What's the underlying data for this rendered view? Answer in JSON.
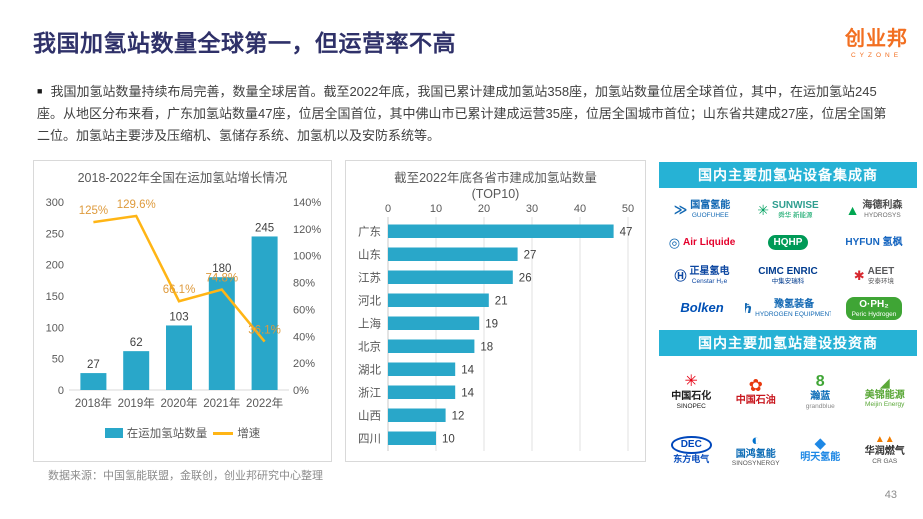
{
  "page": {
    "title": "我国加氢站数量全球第一，但运营率不高",
    "source_note": "数据来源：中国氢能联盟，金联创，创业邦研究中心整理",
    "page_number": "43"
  },
  "brand": {
    "name": "创业邦",
    "sub": "CYZONE",
    "color": "#F26F21"
  },
  "intro": {
    "bullet": "■",
    "text": "我国加氢站数量持续布局完善，数量全球居首。截至2022年底，我国已累计建成加氢站358座，加氢站数量位居全球首位，其中，在运加氢站245座。从地区分布来看，广东加氢站数量47座，位居全国首位，其中佛山市已累计建成运营35座，位居全国城市首位；山东省共建成27座，位居全国第二位。加氢站主要涉及压缩机、氢储存系统、加氢机以及安防系统等。"
  },
  "colors": {
    "teal_bar": "#29A7C9",
    "line_orange": "#FFB515",
    "label_orange": "#DE9A3C",
    "header_cyan": "#26B2D5",
    "title_navy": "#2F3169",
    "axis_gray": "#595959",
    "grid_gray": "#E2E2E2"
  },
  "chart_data": [
    {
      "type": "bar",
      "title": "2018-2022年全国在运加氢站增长情况",
      "categories": [
        "2018年",
        "2019年",
        "2020年",
        "2021年",
        "2022年"
      ],
      "series": [
        {
          "name": "在运加氢站数量",
          "type": "bar",
          "axis": "left",
          "color": "#29A7C9",
          "values": [
            27,
            62,
            103,
            180,
            245
          ]
        },
        {
          "name": "增速",
          "type": "line",
          "axis": "right",
          "color": "#FFB515",
          "values": [
            125,
            129.6,
            66.1,
            74.8,
            36.1
          ],
          "labels": [
            "125%",
            "129.6%",
            "66.1%",
            "74.8%",
            "36.1%"
          ]
        }
      ],
      "left_axis": {
        "min": 0,
        "max": 300,
        "step": 50,
        "ticks": [
          "0",
          "50",
          "100",
          "150",
          "200",
          "250",
          "300"
        ]
      },
      "right_axis": {
        "min": 0,
        "max": 140,
        "step": 20,
        "ticks": [
          "0%",
          "20%",
          "40%",
          "60%",
          "80%",
          "100%",
          "120%",
          "140%"
        ]
      },
      "legend_position": "bottom",
      "grid": false
    },
    {
      "type": "bar",
      "orientation": "horizontal",
      "title": "截至2022年底各省市建成加氢站数量",
      "subtitle": "(TOP10)",
      "categories": [
        "广东",
        "山东",
        "江苏",
        "河北",
        "上海",
        "北京",
        "湖北",
        "浙江",
        "山西",
        "四川"
      ],
      "values": [
        47,
        27,
        26,
        21,
        19,
        18,
        14,
        14,
        12,
        10
      ],
      "xlim": [
        0,
        50
      ],
      "x_ticks": [
        "0",
        "10",
        "20",
        "30",
        "40",
        "50"
      ],
      "color": "#29A7C9",
      "grid": true,
      "axis_position": "top"
    }
  ],
  "suppliers": {
    "header_integrators": "国内主要加氢站设备集成商",
    "header_investors": "国内主要加氢站建设投资商",
    "integrators": [
      {
        "icon": "guofuhee-icon",
        "glyph": "≫",
        "glyphColor": "#1268B3",
        "glyphSize": 13,
        "label": "国富氢能",
        "labelColor": "#1268B3",
        "sub": "GUOFUHEE",
        "subColor": "#1268B3"
      },
      {
        "icon": "sunwise-icon",
        "glyph": "✳",
        "glyphColor": "#00A160",
        "glyphSize": 14,
        "label": "SUNWISE",
        "labelColor": "#2E9E8F",
        "sub": "舜华 新能源",
        "subColor": "#00A160"
      },
      {
        "icon": "hydrosys-icon",
        "glyph": "▲",
        "glyphColor": "#00A651",
        "glyphSize": 14,
        "label": "海德利森",
        "labelColor": "#4D4D4D",
        "sub": "HYDROSYS",
        "subColor": "#6b6b6b"
      },
      {
        "icon": "air-liquide-icon",
        "glyph": "◎",
        "glyphColor": "#0A63AF",
        "glyphSize": 13,
        "label": "Air Liquide",
        "labelColor": "#E4002B"
      },
      {
        "icon": "hqhp-icon",
        "label": "HQHP",
        "labelColor": "#ffffff",
        "badge": "#009A57"
      },
      {
        "icon": "hyfun-icon",
        "label": "HYFUN 氢枫",
        "labelColor": "#1565C0"
      },
      {
        "icon": "censtar-icon",
        "glyph": "Ⓗ",
        "glyphColor": "#0D47A1",
        "glyphSize": 12,
        "label": "正星氢电",
        "labelColor": "#0D47A1",
        "sub": "Censtar H₂e",
        "subColor": "#0D47A1"
      },
      {
        "icon": "cimc-enric-icon",
        "label": "CIMC ENRIC",
        "labelColor": "#003B8E",
        "sub": "中集安瑞科",
        "subColor": "#003B8E"
      },
      {
        "icon": "aeet-icon",
        "glyph": "✱",
        "glyphColor": "#D7282F",
        "glyphSize": 13,
        "label": "AEET",
        "labelColor": "#58595B",
        "sub": "安泰环境",
        "subColor": "#58595B"
      },
      {
        "icon": "bolken-icon",
        "label": "Bolken",
        "labelColor": "#0050B5",
        "italic": true,
        "big": true
      },
      {
        "icon": "yuqing-icon",
        "glyph": "ℏ",
        "glyphColor": "#1268B3",
        "glyphSize": 13,
        "label": "豫氢装备",
        "labelColor": "#1268B3",
        "sub": "HYDROGEN EQUIPMENT",
        "subColor": "#1268B3"
      },
      {
        "icon": "peric-icon",
        "label": "O·PH₂",
        "labelColor": "#ffffff",
        "badge": "#3FA535",
        "sub": "Peric Hydrogen",
        "subColor": "#ffffff",
        "subOnBadge": true
      }
    ],
    "investors": [
      {
        "icon": "sinopec-icon",
        "glyph": "✳",
        "glyphColor": "#E60012",
        "glyphSize": 16,
        "label": "中国石化",
        "labelColor": "#1a1a1a",
        "sub": "SINOPEC",
        "subColor": "#1a1a1a"
      },
      {
        "icon": "petrochina-icon",
        "glyph": "✿",
        "glyphColor": "#E8380D",
        "glyphSize": 17,
        "label": "中国石油",
        "labelColor": "#C8161D"
      },
      {
        "icon": "grandblue-icon",
        "glyph": "8",
        "glyphColor": "#3FA535",
        "glyphSize": 16,
        "label": "瀚蓝",
        "labelColor": "#0E6EB8",
        "sub": "grandblue",
        "subColor": "#8a8a8a"
      },
      {
        "icon": "meijin-icon",
        "glyph": "◢",
        "glyphColor": "#5BA839",
        "glyphSize": 13,
        "label": "美锦能源",
        "labelColor": "#5BA839",
        "sub": "Meijin Energy",
        "subColor": "#5BA839"
      },
      {
        "icon": "dec-icon",
        "label": "DEC",
        "labelColor": "#0047BB",
        "oval": true,
        "sub": "东方电气",
        "subColor": "#0047BB",
        "subBig": true
      },
      {
        "icon": "sinosynergy-icon",
        "glyph": "◐",
        "glyphColor": "#0072CE",
        "glyphSize": 15,
        "label": "国鸿氢能",
        "labelColor": "#0B6BB5",
        "sub": "SINOSYNERGY",
        "subColor": "#555555"
      },
      {
        "icon": "mingtian-icon",
        "glyph": "◆",
        "glyphColor": "#1E88E5",
        "glyphSize": 15,
        "label": "明天氢能",
        "labelColor": "#1E88E5"
      },
      {
        "icon": "crgas-icon",
        "glyph": "▲▲",
        "glyphColor": "#F07C00",
        "glyphSize": 10,
        "label": "华润燃气",
        "labelColor": "#333333",
        "sub": "CR GAS",
        "subColor": "#555555"
      }
    ]
  }
}
